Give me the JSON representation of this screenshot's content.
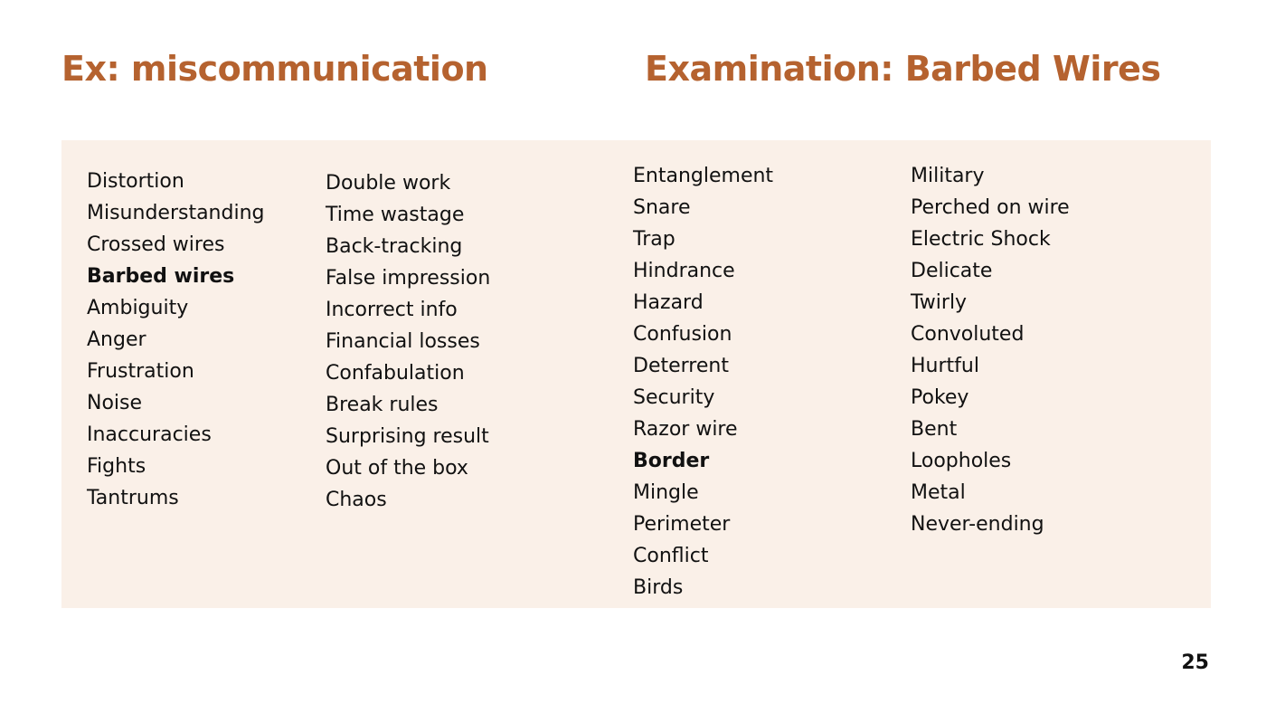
{
  "slide": {
    "left_title": "Ex: miscommunication",
    "right_title": "Examination: Barbed Wires",
    "page_number": "25",
    "accent_color": "#b5622f",
    "panel_color": "#faf0e8"
  },
  "columns": [
    {
      "items": [
        {
          "text": "Distortion",
          "bold": false
        },
        {
          "text": "Misunderstanding",
          "bold": false
        },
        {
          "text": "Crossed wires",
          "bold": false
        },
        {
          "text": "Barbed wires",
          "bold": true
        },
        {
          "text": "Ambiguity",
          "bold": false
        },
        {
          "text": "Anger",
          "bold": false
        },
        {
          "text": "Frustration",
          "bold": false
        },
        {
          "text": "Noise",
          "bold": false
        },
        {
          "text": "Inaccuracies",
          "bold": false
        },
        {
          "text": "Fights",
          "bold": false
        },
        {
          "text": "Tantrums",
          "bold": false
        }
      ]
    },
    {
      "items": [
        {
          "text": "Double work",
          "bold": false
        },
        {
          "text": "Time wastage",
          "bold": false
        },
        {
          "text": "Back-tracking",
          "bold": false
        },
        {
          "text": "False impression",
          "bold": false
        },
        {
          "text": "Incorrect info",
          "bold": false
        },
        {
          "text": "Financial losses",
          "bold": false
        },
        {
          "text": "Confabulation",
          "bold": false
        },
        {
          "text": "Break rules",
          "bold": false
        },
        {
          "text": "Surprising result",
          "bold": false
        },
        {
          "text": "Out of the box",
          "bold": false
        },
        {
          "text": "Chaos",
          "bold": false
        }
      ]
    },
    {
      "items": [
        {
          "text": "Entanglement",
          "bold": false
        },
        {
          "text": "Snare",
          "bold": false
        },
        {
          "text": "Trap",
          "bold": false
        },
        {
          "text": "Hindrance",
          "bold": false
        },
        {
          "text": "Hazard",
          "bold": false
        },
        {
          "text": "Confusion",
          "bold": false
        },
        {
          "text": "Deterrent",
          "bold": false
        },
        {
          "text": "Security",
          "bold": false
        },
        {
          "text": "Razor wire",
          "bold": false
        },
        {
          "text": "Border",
          "bold": true
        },
        {
          "text": "Mingle",
          "bold": false
        },
        {
          "text": "Perimeter",
          "bold": false
        },
        {
          "text": "Conflict",
          "bold": false
        },
        {
          "text": "Birds",
          "bold": false
        }
      ]
    },
    {
      "items": [
        {
          "text": "Military",
          "bold": false
        },
        {
          "text": "Perched on wire",
          "bold": false
        },
        {
          "text": "Electric Shock",
          "bold": false
        },
        {
          "text": "Delicate",
          "bold": false
        },
        {
          "text": "Twirly",
          "bold": false
        },
        {
          "text": "Convoluted",
          "bold": false
        },
        {
          "text": "Hurtful",
          "bold": false
        },
        {
          "text": "Pokey",
          "bold": false
        },
        {
          "text": "Bent",
          "bold": false
        },
        {
          "text": "Loopholes",
          "bold": false
        },
        {
          "text": "Metal",
          "bold": false
        },
        {
          "text": "Never-ending",
          "bold": false
        }
      ]
    }
  ]
}
